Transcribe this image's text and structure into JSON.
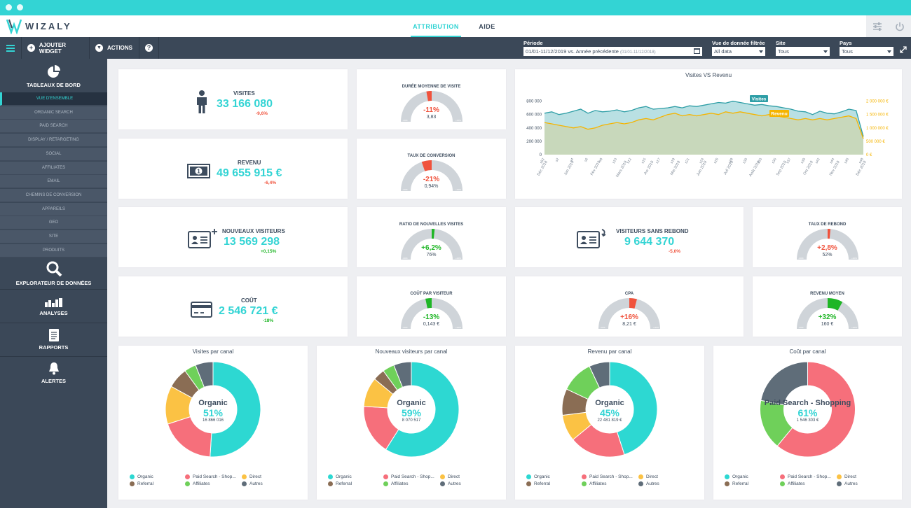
{
  "app": {
    "logo_text": "WIZALY",
    "tabs": [
      {
        "label": "ATTRIBUTION"
      },
      {
        "label": "AIDE"
      }
    ]
  },
  "toolbar": {
    "add_widget": "AJOUTER WIDGET",
    "actions": "ACTIONS",
    "help": "?"
  },
  "filters": {
    "period": {
      "label": "Période",
      "value": "01/01-11/12/2019  vs.  Année précédente",
      "sub": "(01/01-11/12/2018)"
    },
    "view": {
      "label": "Vue de donnée filtrée",
      "value": "All data"
    },
    "site": {
      "label": "Site",
      "value": "Tous"
    },
    "country": {
      "label": "Pays",
      "value": "Tous"
    }
  },
  "sidebar": {
    "dashboards": "TABLEAUX DE BORD",
    "items": [
      "VUE D'ENSEMBLE",
      "ORGANIC SEARCH",
      "PAID SEARCH",
      "DISPLAY / RETARGETING",
      "SOCIAL",
      "AFFILIATES",
      "EMAIL",
      "CHEMINS DE CONVERSION",
      "APPAREILS",
      "GEO",
      "SITE",
      "PRODUITS"
    ],
    "explorer": "EXPLORATEUR DE DONNÉES",
    "analyses": "ANALYSES",
    "reports": "RAPPORTS",
    "alerts": "ALERTES"
  },
  "kpis": {
    "visites": {
      "title": "VISITES",
      "value": "33 166 080",
      "delta": "-9,6%"
    },
    "revenu": {
      "title": "REVENU",
      "value": "49 655 915 €",
      "delta": "-6,4%"
    },
    "nouveaux": {
      "title": "NOUVEAUX VISITEURS",
      "value": "13 569 298",
      "delta": "+0,15%"
    },
    "sans_rebond": {
      "title": "VISITEURS SANS REBOND",
      "value": "9 644 370",
      "delta": "-5,0%"
    },
    "cout": {
      "title": "COÛT",
      "value": "2 546 721 €",
      "delta": "-18%"
    }
  },
  "gauges": {
    "duree": {
      "title": "DURÉE MOYENNE DE VISITE",
      "delta": "-11%",
      "value": "3,83",
      "level": -0.11,
      "color": "#f0523c"
    },
    "conversion": {
      "title": "TAUX DE CONVERSION",
      "delta": "-21%",
      "value": "0,94%",
      "level": -0.21,
      "color": "#f0523c"
    },
    "ratio": {
      "title": "RATIO DE NOUVELLES VISITES",
      "delta": "+6,2%",
      "value": "76%",
      "level": 0.062,
      "color": "#1fb626"
    },
    "rebond": {
      "title": "TAUX DE REBOND",
      "delta": "+2,8%",
      "value": "52%",
      "level": 0.028,
      "color": "#f0523c"
    },
    "cpv": {
      "title": "COÛT PAR VISITEUR",
      "delta": "-13%",
      "value": "0,143 €",
      "level": -0.13,
      "color": "#1fb626"
    },
    "cpa": {
      "title": "CPA",
      "delta": "+16%",
      "value": "8,21 €",
      "level": 0.16,
      "color": "#f0523c"
    },
    "revmoy": {
      "title": "REVENU MOYEN",
      "delta": "+32%",
      "value": "160 €",
      "level": 0.32,
      "color": "#1fb626"
    }
  },
  "gauge_ticks": [
    "-100%",
    "-50%",
    "+50%",
    "+100%"
  ],
  "colors": {
    "accent": "#33d4d4",
    "negative": "#f0523c",
    "positive": "#1fb626",
    "organic": "#2dd8d2",
    "paid": "#f66f7b",
    "direct": "#fbc244",
    "referral": "#8a6d54",
    "affiliates": "#6fd05a",
    "autres": "#5f6d79"
  },
  "legend": {
    "labels": [
      "Organic",
      "Paid Search - Shop...",
      "Direct",
      "Referral",
      "Affiliates",
      "Autres"
    ]
  },
  "chart_data": [
    {
      "type": "area",
      "title": "Visites VS Revenu",
      "series": [
        {
          "name": "Visites",
          "axis": "left",
          "values": [
            620000,
            640000,
            600000,
            620000,
            650000,
            680000,
            620000,
            660000,
            640000,
            650000,
            670000,
            640000,
            660000,
            700000,
            720000,
            680000,
            690000,
            700000,
            720000,
            700000,
            730000,
            720000,
            740000,
            760000,
            780000,
            770000,
            800000,
            780000,
            760000,
            740000,
            750000,
            730000,
            720000,
            700000,
            680000,
            650000,
            640000,
            600000,
            650000,
            620000,
            610000,
            640000,
            680000,
            660000,
            270000
          ]
        },
        {
          "name": "Revenu",
          "axis": "right",
          "values": [
            1200000,
            1150000,
            1100000,
            1050000,
            1000000,
            1050000,
            950000,
            1000000,
            1100000,
            1150000,
            1200000,
            1150000,
            1200000,
            1300000,
            1350000,
            1300000,
            1400000,
            1500000,
            1550000,
            1450000,
            1500000,
            1450000,
            1500000,
            1550000,
            1500000,
            1600000,
            1550000,
            1600000,
            1550000,
            1500000,
            1450000,
            1500000,
            1450000,
            1400000,
            1350000,
            1300000,
            1350000,
            1300000,
            1350000,
            1300000,
            1350000,
            1400000,
            1450000,
            1350000,
            600000
          ]
        }
      ],
      "ylim_left": [
        0,
        900000
      ],
      "ylim_right": [
        0,
        2250000
      ],
      "yticks_left": [
        "800 000",
        "600 000",
        "400 000",
        "200 000",
        "0"
      ],
      "yticks_right": [
        "2 000 000 €",
        "1 500 000 €",
        "1 000 000 €",
        "500 000 €",
        "0 €"
      ],
      "xticks_top": [
        "s52",
        "s2",
        "s4",
        "s6",
        "s8",
        "s10",
        "s12",
        "s15",
        "s17",
        "s19",
        "s21",
        "s24",
        "s26",
        "s28",
        "s30",
        "s33",
        "s35",
        "s37",
        "s39",
        "s42",
        "s44",
        "s46",
        "s48"
      ],
      "xticks_bottom": [
        "Déc 2018",
        "Jan 2019",
        "Fév 2019",
        "Mars 2019",
        "Avr 2019",
        "Mai 2019",
        "Juin 2019",
        "Juil 2019",
        "Août 2019",
        "Sep 2019",
        "Oct 2019",
        "Nov 2019",
        "Déc 2019"
      ],
      "annotations": [
        "Visites",
        "Revenu"
      ],
      "grid": false
    },
    {
      "type": "pie",
      "title": "Visites par canal",
      "center_label": "Organic",
      "center_pct": "51%",
      "center_abs": "16 866 016",
      "values": [
        51,
        19,
        13,
        7,
        4,
        6
      ]
    },
    {
      "type": "pie",
      "title": "Nouveaux visiteurs par canal",
      "center_label": "Organic",
      "center_pct": "59%",
      "center_abs": "8 070 517",
      "values": [
        59,
        17,
        10,
        4,
        4,
        6
      ]
    },
    {
      "type": "pie",
      "title": "Revenu par canal",
      "center_label": "Organic",
      "center_pct": "45%",
      "center_abs": "22 481 819 €",
      "values": [
        45,
        19,
        9,
        9,
        11,
        7
      ]
    },
    {
      "type": "pie",
      "title": "Coût par canal",
      "center_label": "Paid Search - Shopping",
      "center_pct": "61%",
      "center_abs": "1 546 303 €",
      "values": [
        0,
        61,
        0,
        0,
        17,
        22
      ]
    }
  ]
}
